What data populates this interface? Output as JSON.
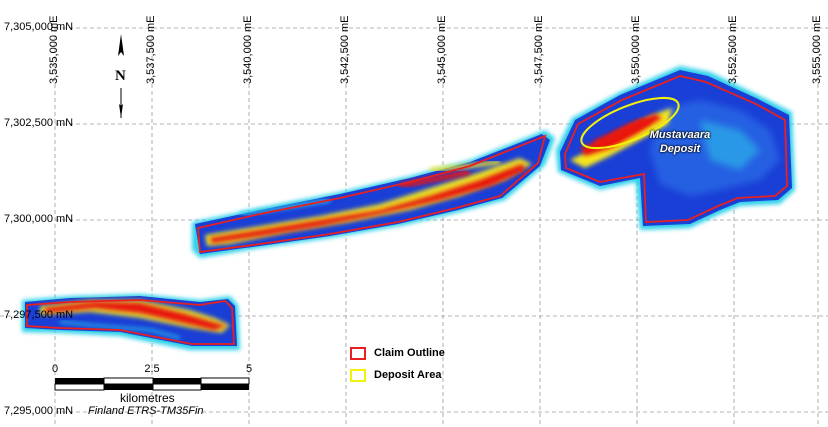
{
  "map": {
    "northing_labels": [
      "7,305,000 mN",
      "7,302,500 mN",
      "7,300,000 mN",
      "7,297,500 mN",
      "7,295,000 mN"
    ],
    "easting_labels": [
      "3,535,000 mE",
      "3,537,500 mE",
      "3,540,000 mE",
      "3,542,500 mE",
      "3,545,000 mE",
      "3,547,500 mE",
      "3,550,000 mE",
      "3,552,500 mE",
      "3,555,000 mE"
    ],
    "deposit_label_line1": "Mustavaara",
    "deposit_label_line2": "Deposit",
    "north_arrow_letter": "N"
  },
  "legend": {
    "claim_outline_label": "Claim Outline",
    "claim_outline_color": "#e82020",
    "deposit_area_label": "Deposit Area",
    "deposit_area_color": "#f2f20a"
  },
  "scale_bar": {
    "ticks": [
      "0",
      "2.5",
      "5"
    ],
    "units": "kilometres",
    "crs": "Finland ETRS-TM35Fin"
  },
  "colors": {
    "anomaly_high": "#e8140e",
    "anomaly_mid": "#f5e41a",
    "anomaly_low": "#1a3fd6",
    "anomaly_edge": "#2fd0ea",
    "grid": "#9a9a9a"
  }
}
